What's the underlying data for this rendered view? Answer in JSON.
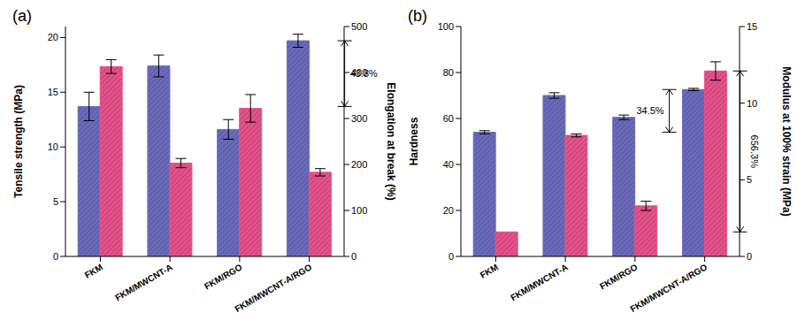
{
  "chart_data": [
    {
      "type": "bar",
      "title": "(a)",
      "categories": [
        "FKM",
        "FKM/MWCNT-A",
        "FKM/RGO",
        "FKM/MWCNT-A/RGO"
      ],
      "ylabel": "Tensile strength (MPa)",
      "y2label": "Elongation at break (%)",
      "series": [
        {
          "color": "#6b6bbd",
          "axis": "y",
          "values": [
            13.7,
            17.4,
            11.6,
            19.7
          ],
          "errors": [
            1.3,
            1.0,
            0.9,
            0.6
          ]
        },
        {
          "color": "#e6528b",
          "axis": "y2",
          "values": [
            413,
            203,
            322,
            183
          ],
          "errors": [
            15,
            10,
            30,
            8
          ]
        }
      ],
      "ylim": [
        0,
        21
      ],
      "yticks": [
        0,
        5,
        10,
        15,
        20
      ],
      "y2lim": [
        0,
        500
      ],
      "y2ticks": [
        0,
        100,
        200,
        300,
        400,
        500
      ],
      "annotations": [
        {
          "text": "43.8%",
          "category": "FKM/MWCNT-A/RGO",
          "axis": "y",
          "from": 13.7,
          "to": 19.7
        }
      ]
    },
    {
      "type": "bar",
      "title": "(b)",
      "categories": [
        "FKM",
        "FKM/MWCNT-A",
        "FKM/RGO",
        "FKM/MWCNT-A/RGO"
      ],
      "ylabel": "Hardness",
      "y2label": "Modulus at 100% strain (MPa)",
      "series": [
        {
          "color": "#6b6bbd",
          "axis": "y",
          "values": [
            54,
            70,
            60.5,
            72.6
          ],
          "errors": [
            0.7,
            1.2,
            1.0,
            0.5
          ]
        },
        {
          "color": "#e6528b",
          "axis": "y2",
          "values": [
            1.6,
            7.9,
            3.3,
            12.1
          ],
          "errors": [
            0,
            0.1,
            0.3,
            0.6
          ]
        }
      ],
      "ylim": [
        0,
        100
      ],
      "yticks": [
        0,
        20,
        40,
        60,
        80,
        100
      ],
      "y2lim": [
        0,
        15
      ],
      "y2ticks": [
        0,
        5,
        10,
        15
      ],
      "annotations": [
        {
          "text": "34.5%",
          "category": "FKM/MWCNT-A/RGO",
          "axis": "y",
          "from": 54,
          "to": 72.6
        },
        {
          "text": "656.3%",
          "category": "FKM/MWCNT-A/RGO",
          "axis": "y2",
          "from": 1.6,
          "to": 12.1
        }
      ]
    }
  ]
}
